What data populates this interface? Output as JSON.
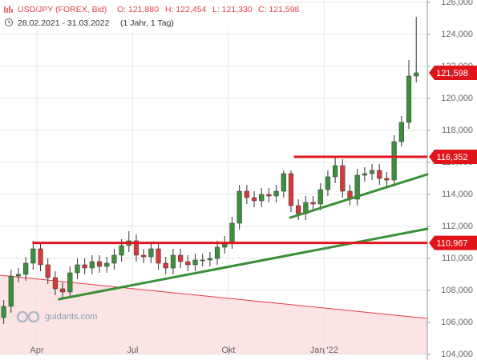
{
  "header": {
    "symbol": "USD/JPY (FOREX, Bid)",
    "open": "O: 121,880",
    "high": "H: 122,454",
    "low": "L: 121,330",
    "close": "C: 121,598",
    "range": "28.02.2021 - 31.03.2022",
    "period": "(1 Jahr, 1 Tag)",
    "watermark": "guidants.com"
  },
  "chart_data": {
    "type": "candlestick",
    "up_color": "#3c8f3c",
    "down_color": "#d43a3a",
    "open": [
      106.3,
      107.0,
      108.9,
      109.0,
      109.7,
      110.6,
      109.6,
      108.8,
      108.1,
      107.9,
      109.1,
      109.6,
      109.4,
      109.8,
      109.5,
      109.7,
      110.2,
      110.8,
      111.1,
      110.2,
      110.1,
      110.6,
      109.7,
      109.4,
      110.2,
      109.8,
      109.6,
      109.9,
      109.9,
      110.0,
      110.7,
      111.0,
      112.2,
      114.2,
      113.8,
      113.6,
      114.0,
      113.9,
      114.2,
      115.3,
      113.3,
      112.8,
      113.5,
      113.4,
      114.3,
      115.1,
      115.8,
      114.2,
      113.7,
      115.2,
      115.3,
      115.5,
      115.0,
      114.9,
      117.3,
      118.5,
      121.4
    ],
    "high": [
      107.4,
      109.3,
      109.4,
      110.1,
      111.1,
      111.0,
      110.0,
      109.2,
      108.5,
      109.5,
      110.0,
      110.0,
      110.2,
      110.2,
      110.1,
      110.6,
      111.2,
      111.7,
      111.5,
      110.6,
      111.0,
      111.0,
      110.1,
      110.6,
      110.6,
      110.2,
      110.3,
      110.3,
      110.4,
      111.1,
      111.4,
      112.6,
      114.6,
      114.6,
      114.2,
      114.4,
      114.4,
      114.6,
      115.5,
      115.5,
      113.7,
      113.9,
      113.9,
      114.7,
      115.5,
      116.35,
      116.2,
      114.6,
      115.6,
      115.7,
      115.9,
      115.9,
      115.4,
      117.7,
      118.9,
      122.4,
      125.1
    ],
    "low": [
      105.9,
      106.6,
      108.5,
      108.6,
      109.3,
      109.2,
      108.4,
      107.7,
      107.5,
      107.5,
      108.7,
      109.0,
      109.0,
      109.1,
      109.1,
      109.3,
      109.8,
      110.4,
      109.8,
      109.7,
      109.7,
      109.3,
      109.0,
      109.0,
      109.4,
      109.2,
      109.2,
      109.5,
      109.5,
      109.6,
      110.3,
      110.6,
      111.8,
      113.4,
      113.2,
      113.2,
      113.5,
      113.5,
      113.8,
      112.9,
      112.4,
      112.4,
      113.0,
      113.0,
      113.9,
      114.7,
      113.8,
      113.3,
      113.3,
      114.8,
      114.9,
      114.6,
      114.5,
      114.5,
      117.0,
      118.1,
      121.0
    ],
    "close": [
      107.0,
      108.9,
      109.0,
      109.7,
      110.6,
      109.6,
      108.8,
      108.1,
      107.9,
      109.1,
      109.6,
      109.4,
      109.8,
      109.5,
      109.7,
      110.2,
      110.8,
      111.1,
      110.2,
      110.1,
      110.6,
      109.7,
      109.4,
      110.2,
      109.8,
      109.6,
      109.9,
      109.9,
      110.0,
      110.7,
      111.0,
      112.2,
      114.2,
      113.8,
      113.6,
      114.0,
      113.9,
      114.2,
      115.3,
      113.3,
      112.8,
      113.5,
      113.4,
      114.3,
      115.1,
      115.8,
      114.2,
      113.7,
      115.2,
      115.3,
      115.5,
      115.0,
      114.9,
      117.3,
      118.5,
      121.4,
      121.598
    ],
    "xlim": [
      -0.5,
      57.5
    ],
    "xticks": [
      {
        "value": 4.5,
        "label": "Apr"
      },
      {
        "value": 17.5,
        "label": "Jul"
      },
      {
        "value": 30.5,
        "label": "Okt"
      },
      {
        "value": 43.5,
        "label": "Jan '22"
      }
    ],
    "ylim": [
      104,
      126.15
    ],
    "yticks": [
      {
        "value": 104,
        "label": "104,000"
      },
      {
        "value": 106,
        "label": "106,000"
      },
      {
        "value": 108,
        "label": "108,000"
      },
      {
        "value": 110,
        "label": "110,000"
      },
      {
        "value": 112,
        "label": "112,000"
      },
      {
        "value": 114,
        "label": "114,000"
      },
      {
        "value": 116,
        "label": "116,000"
      },
      {
        "value": 118,
        "label": "118,000"
      },
      {
        "value": 120,
        "label": "120,000"
      },
      {
        "value": 122,
        "label": "122,000"
      },
      {
        "value": 124,
        "label": "124,000"
      },
      {
        "value": 126,
        "label": "126,000"
      }
    ],
    "grid": true,
    "last": {
      "value": 121.598,
      "label": "121,598"
    },
    "levels": [
      {
        "value": 116.352,
        "label": "116,352",
        "start": 39.4
      },
      {
        "value": 110.967,
        "label": "110,967",
        "start": 3.9
      }
    ],
    "level_color": "#e0151b",
    "trendlines": [
      {
        "x": [
          7.5,
          57.5
        ],
        "y": [
          107.45,
          111.85
        ],
        "color": "#3a8f36"
      },
      {
        "x": [
          38.9,
          57.5
        ],
        "y": [
          112.55,
          115.25
        ],
        "color": "#3a8f36"
      }
    ],
    "channel": {
      "x": [
        -0.5,
        57.5
      ],
      "y": [
        108.95,
        106.25
      ],
      "color": "#e8384a",
      "fill": "#fde4e4"
    }
  }
}
